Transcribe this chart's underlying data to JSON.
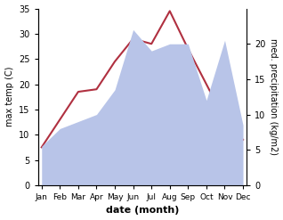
{
  "months": [
    "Jan",
    "Feb",
    "Mar",
    "Apr",
    "May",
    "Jun",
    "Jul",
    "Aug",
    "Sep",
    "Oct",
    "Nov",
    "Dec"
  ],
  "max_temp": [
    7.5,
    13,
    18.5,
    19,
    24.5,
    29,
    28,
    34.5,
    27,
    20,
    13,
    9
  ],
  "precip_kg": [
    5.5,
    8,
    9,
    10,
    13.5,
    22,
    19,
    20,
    20,
    12,
    20.5,
    8.5
  ],
  "temp_color": "#b03040",
  "precip_fill_color": "#b8c4e8",
  "temp_ylim": [
    0,
    35
  ],
  "right_ylim": [
    0,
    25
  ],
  "left_ticks": [
    0,
    5,
    10,
    15,
    20,
    25,
    30,
    35
  ],
  "right_ticks": [
    0,
    5,
    10,
    15,
    20
  ],
  "xlabel": "date (month)",
  "ylabel_left": "max temp (C)",
  "ylabel_right": "med. precipitation (kg/m2)"
}
